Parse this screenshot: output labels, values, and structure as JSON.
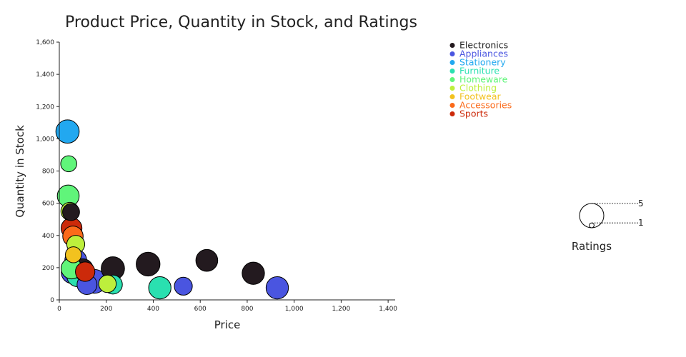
{
  "chart_data": {
    "type": "scatter",
    "title": "Product Price, Quantity in Stock, and Ratings",
    "xlabel": "Price",
    "ylabel": "Quantity in Stock",
    "xlim": [
      0,
      1430
    ],
    "ylim": [
      0,
      1600
    ],
    "x_ticks": [
      0,
      200,
      400,
      600,
      800,
      1000,
      1200,
      1400
    ],
    "y_ticks": [
      0,
      200,
      400,
      600,
      800,
      1000,
      1200,
      1400,
      1600
    ],
    "grid": false,
    "legend_position": "top-right",
    "size_legend": {
      "title": "Ratings",
      "values": [
        5,
        1
      ]
    },
    "series": [
      {
        "name": "Electronics",
        "color": "#231a1f",
        "points": [
          {
            "x": 628,
            "y": 245,
            "rating": 4.5
          },
          {
            "x": 826,
            "y": 165,
            "rating": 4.6
          },
          {
            "x": 378,
            "y": 222,
            "rating": 4.9
          },
          {
            "x": 228,
            "y": 195,
            "rating": 4.8
          },
          {
            "x": 50,
            "y": 545,
            "rating": 3.5
          },
          {
            "x": 100,
            "y": 190,
            "rating": 4.3
          }
        ]
      },
      {
        "name": "Appliances",
        "color": "#4a55e0",
        "points": [
          {
            "x": 928,
            "y": 75,
            "rating": 4.6
          },
          {
            "x": 528,
            "y": 85,
            "rating": 3.7
          },
          {
            "x": 118,
            "y": 95,
            "rating": 4.1
          },
          {
            "x": 150,
            "y": 115,
            "rating": 4.9
          },
          {
            "x": 70,
            "y": 245,
            "rating": 4.5
          },
          {
            "x": 55,
            "y": 170,
            "rating": 4.5
          }
        ]
      },
      {
        "name": "Stationery",
        "color": "#22a8f0",
        "points": [
          {
            "x": 35,
            "y": 1045,
            "rating": 4.8
          }
        ]
      },
      {
        "name": "Furniture",
        "color": "#2ae0b0",
        "points": [
          {
            "x": 428,
            "y": 75,
            "rating": 4.6
          },
          {
            "x": 228,
            "y": 95,
            "rating": 3.9
          },
          {
            "x": 78,
            "y": 150,
            "rating": 4.5
          }
        ]
      },
      {
        "name": "Homeware",
        "color": "#60f57a",
        "points": [
          {
            "x": 40,
            "y": 845,
            "rating": 3.3
          },
          {
            "x": 38,
            "y": 645,
            "rating": 4.5
          },
          {
            "x": 52,
            "y": 195,
            "rating": 4.3
          }
        ]
      },
      {
        "name": "Clothing",
        "color": "#bdef3c",
        "points": [
          {
            "x": 45,
            "y": 550,
            "rating": 3.7
          },
          {
            "x": 70,
            "y": 345,
            "rating": 3.7
          },
          {
            "x": 205,
            "y": 100,
            "rating": 3.6
          }
        ]
      },
      {
        "name": "Footwear",
        "color": "#f2c21f",
        "points": [
          {
            "x": 60,
            "y": 280,
            "rating": 3.3
          }
        ]
      },
      {
        "name": "Accessories",
        "color": "#fb6a1a",
        "points": [
          {
            "x": 58,
            "y": 395,
            "rating": 4.2
          }
        ]
      },
      {
        "name": "Sports",
        "color": "#cc2a0a",
        "points": [
          {
            "x": 52,
            "y": 445,
            "rating": 4.3
          },
          {
            "x": 110,
            "y": 175,
            "rating": 4.0
          }
        ]
      }
    ]
  }
}
